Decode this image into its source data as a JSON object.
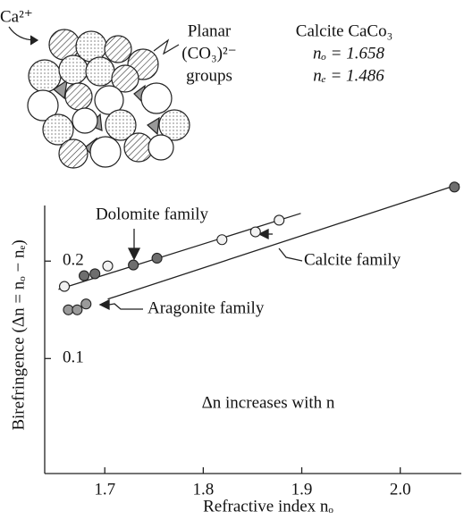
{
  "diagram": {
    "ion_label": "Ca²⁺",
    "group_label": [
      "Planar",
      "(CO₃)²⁻",
      "groups"
    ],
    "mineral": "Calcite CaCo₃",
    "indices": [
      "nₒ = 1.658",
      "nₑ = 1.486"
    ]
  },
  "chart_data": {
    "type": "scatter",
    "x_label": "Refractive index nₒ",
    "y_label": "Birefringence (Δn = nₒ − nₑ)",
    "annotation": "Δn increases with n",
    "xlim": [
      1.639,
      2.062
    ],
    "ylim": [
      -0.018,
      0.28
    ],
    "xticks": [
      1.7,
      1.8,
      1.9,
      {
        "value": 2.0,
        "label": "2.0"
      }
    ],
    "yticks": [
      0.1,
      0.2
    ],
    "series": [
      {
        "name": "Dolomite family",
        "color": "#6e6e6e",
        "x": [
          1.679,
          1.69,
          1.729,
          1.753,
          2.055
        ],
        "values": [
          0.185,
          0.187,
          0.196,
          0.203,
          0.276
        ]
      },
      {
        "name": "Calcite family",
        "color": "#f2f2f2",
        "x": [
          1.659,
          1.703,
          1.819,
          1.853,
          1.877
        ],
        "values": [
          0.174,
          0.195,
          0.222,
          0.23,
          0.242
        ]
      },
      {
        "name": "Aragonite family",
        "color": "#9a9a9a",
        "x": [
          1.663,
          1.672,
          1.681
        ],
        "values": [
          0.15,
          0.15,
          0.156
        ]
      }
    ],
    "trend_lines": [
      {
        "x": [
          1.653,
          1.899
        ],
        "y": [
          0.171,
          0.249
        ]
      },
      {
        "x": [
          1.703,
          2.06
        ],
        "y": [
          0.161,
          0.279
        ]
      }
    ]
  }
}
